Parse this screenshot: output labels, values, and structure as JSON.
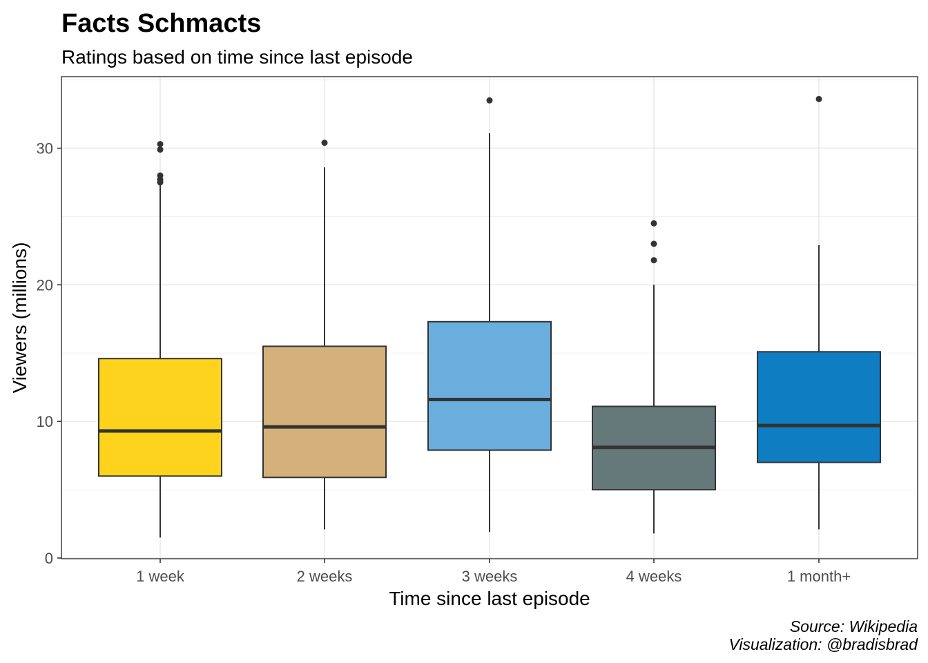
{
  "chart_data": {
    "type": "box",
    "title": "Facts Schmacts",
    "subtitle": "Ratings based on time since last episode",
    "xlabel": "Time since last episode",
    "ylabel": "Viewers (millions)",
    "ylim": [
      0,
      35
    ],
    "yticks": [
      0,
      10,
      20,
      30
    ],
    "grid": true,
    "categories": [
      "1 week",
      "2 weeks",
      "3 weeks",
      "4 weeks",
      "1 month+"
    ],
    "boxes": [
      {
        "category": "1 week",
        "color": "#FDD31E",
        "min": 1.5,
        "q1": 6.0,
        "median": 9.3,
        "q3": 14.6,
        "max": 27.3,
        "outliers": [
          27.5,
          27.7,
          28.0,
          29.9,
          30.3
        ]
      },
      {
        "category": "2 weeks",
        "color": "#D4B07A",
        "min": 2.1,
        "q1": 5.9,
        "median": 9.6,
        "q3": 15.5,
        "max": 28.6,
        "outliers": [
          30.4
        ]
      },
      {
        "category": "3 weeks",
        "color": "#69AEDD",
        "min": 1.9,
        "q1": 7.9,
        "median": 11.6,
        "q3": 17.3,
        "max": 31.1,
        "outliers": [
          33.5
        ]
      },
      {
        "category": "4 weeks",
        "color": "#66797A",
        "min": 1.8,
        "q1": 5.0,
        "median": 8.1,
        "q3": 11.1,
        "max": 20.0,
        "outliers": [
          21.8,
          23.0,
          24.5
        ]
      },
      {
        "category": "1 month+",
        "color": "#0E7DC1",
        "min": 2.1,
        "q1": 7.0,
        "median": 9.7,
        "q3": 15.1,
        "max": 22.9,
        "outliers": [
          33.6
        ]
      }
    ],
    "caption": [
      "Source: Wikipedia",
      "Visualization: @bradisbrad"
    ]
  }
}
